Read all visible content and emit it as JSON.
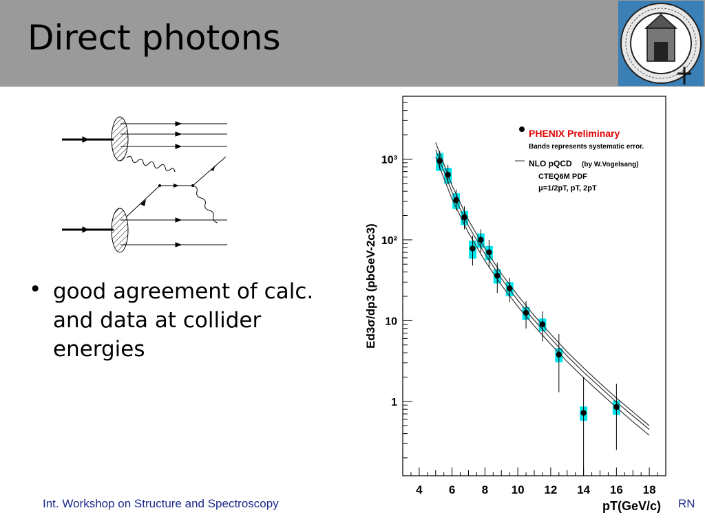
{
  "slide": {
    "title": "Direct photons",
    "bullet_marker": "•",
    "bullet_text": "good agreement of calc. and data at collider energies",
    "footer_left": "Int. Workshop on Structure and Spectroscopy",
    "footer_right": "RN"
  },
  "chart_data": {
    "type": "scatter",
    "xlabel": "pT(GeV/c)",
    "ylabel": "Ed3σ/dp3 (pbGeV-2c3)",
    "xlim": [
      3,
      19
    ],
    "ylim": [
      0.12,
      6000
    ],
    "yscale": "log",
    "x_ticks": [
      4,
      6,
      8,
      10,
      12,
      14,
      16,
      18
    ],
    "y_ticks": [
      {
        "value": 1,
        "label": "1"
      },
      {
        "value": 10,
        "label": "10"
      },
      {
        "value": 100,
        "label": "10²"
      },
      {
        "value": 1000,
        "label": "10³"
      }
    ],
    "legend": {
      "placement": "top-right",
      "data_label": "PHENIX Preliminary",
      "band_note": "Bands represents systematic error.",
      "theory_label": "NLO pQCD",
      "theory_author": "(by W.Vogelsang)",
      "pdf_label": "CTEQ6M PDF",
      "scale_label": "μ=1/2pT, pT, 2pT"
    },
    "series": [
      {
        "name": "PHENIX Preliminary",
        "x": [
          5.25,
          5.75,
          6.25,
          6.75,
          7.25,
          7.75,
          8.25,
          8.75,
          9.5,
          10.5,
          11.5,
          12.5,
          14.0,
          16.0
        ],
        "y": [
          950,
          640,
          310,
          190,
          78,
          100,
          70,
          36,
          25,
          12.5,
          9,
          3.8,
          0.72,
          0.85
        ],
        "err_low": [
          210,
          150,
          80,
          55,
          30,
          30,
          25,
          14,
          8,
          4.5,
          3.5,
          2.5,
          0.6,
          0.6
        ],
        "err_high": [
          310,
          210,
          110,
          70,
          35,
          35,
          30,
          16,
          9,
          5,
          4,
          3,
          1.3,
          0.8
        ],
        "sys": [
          0.25,
          0.22,
          0.22,
          0.2,
          0.25,
          0.2,
          0.2,
          0.2,
          0.2,
          0.18,
          0.18,
          0.2,
          0.2,
          0.2
        ]
      }
    ],
    "curves": [
      {
        "x": [
          5.0,
          6.0,
          7.0,
          8.0,
          9.0,
          10.0,
          11.0,
          12.0,
          13.0,
          14.0,
          15.0,
          16.0,
          17.0,
          18.0
        ],
        "y": [
          1600,
          470,
          175,
          78,
          38,
          20.5,
          11.5,
          6.8,
          4.1,
          2.6,
          1.68,
          1.1,
          0.74,
          0.5
        ]
      },
      {
        "x": [
          5.0,
          6.0,
          7.0,
          8.0,
          9.0,
          10.0,
          11.0,
          12.0,
          13.0,
          14.0,
          15.0,
          16.0,
          17.0,
          18.0
        ],
        "y": [
          1300,
          390,
          148,
          67,
          33,
          17.8,
          10.1,
          6.0,
          3.65,
          2.3,
          1.5,
          0.98,
          0.66,
          0.45
        ]
      },
      {
        "x": [
          5.0,
          6.0,
          7.0,
          8.0,
          9.0,
          10.0,
          11.0,
          12.0,
          13.0,
          14.0,
          15.0,
          16.0,
          17.0,
          18.0
        ],
        "y": [
          1050,
          320,
          122,
          55,
          27.5,
          15,
          8.6,
          5.1,
          3.1,
          1.97,
          1.28,
          0.84,
          0.56,
          0.38
        ]
      }
    ],
    "colors": {
      "points": "#000000",
      "band": "#00e5ee",
      "curves": "#333333",
      "legend_title": "#e00000"
    }
  }
}
